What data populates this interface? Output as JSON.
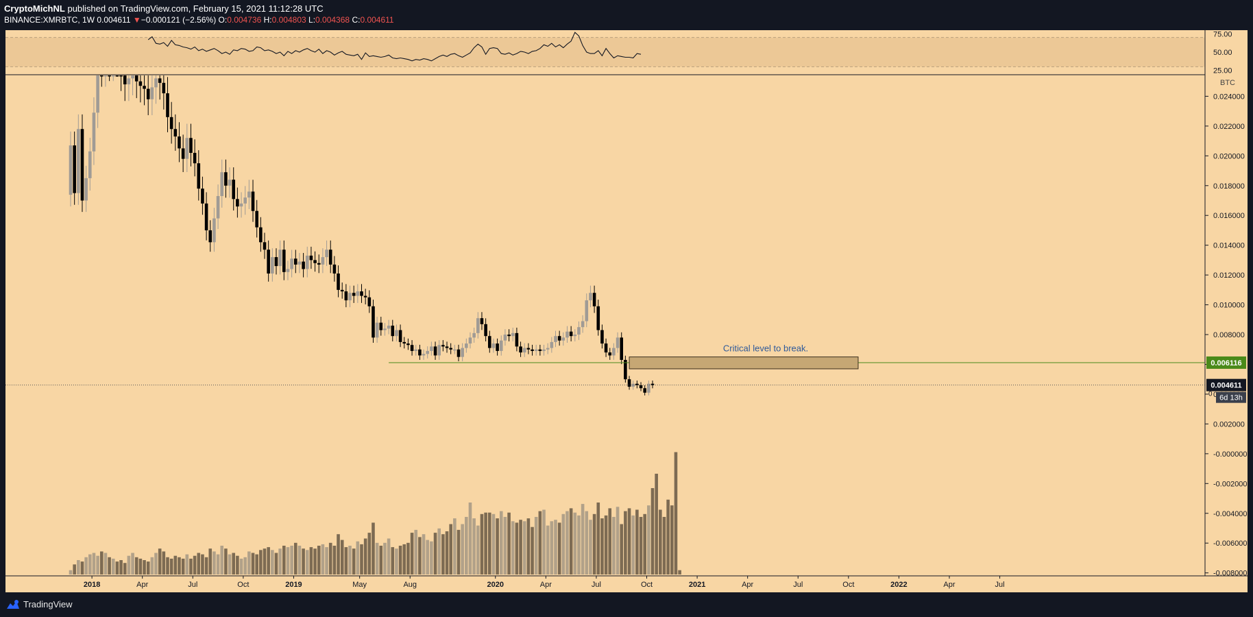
{
  "header": {
    "author": "CryptoMichNL",
    "published": "published on TradingView.com, February 15, 2021 11:12:28 UTC",
    "symbol": "BINANCE:XMRBTC, 1W",
    "last": "0.004611",
    "change_arrow": "▼",
    "change": "−0.000121 (−2.56%)",
    "o_label": "O:",
    "o": "0.004736",
    "h_label": "H:",
    "h": "0.004803",
    "l_label": "L:",
    "l": "0.004368",
    "c_label": "C:",
    "c": "0.004611"
  },
  "footer": {
    "brand": "TradingView",
    "logo_icon": "tradingview-logo-icon"
  },
  "colors": {
    "background": "#f8d6a4",
    "rsi_band": "#ecc896",
    "bull": "#a09b95",
    "bear": "#000000",
    "vol_up": "#b1a189",
    "vol_down": "#7d6b53",
    "support": "#4a8a1a",
    "box_fill": "#c6a774",
    "annotation": "#2f5a9a"
  },
  "chart_data": [
    {
      "type": "line",
      "name": "rsi",
      "y_ticks": [
        "75.00",
        "50.00",
        "25.00"
      ],
      "ylim": [
        20,
        80
      ],
      "band": [
        30,
        70
      ],
      "values": [
        67,
        71,
        62,
        61,
        63,
        58,
        66,
        60,
        59,
        57,
        56,
        54,
        57,
        52,
        54,
        51,
        53,
        55,
        52,
        48,
        50,
        47,
        53,
        52,
        55,
        54,
        51,
        52,
        57,
        56,
        52,
        53,
        51,
        48,
        50,
        45,
        51,
        48,
        52,
        50,
        53,
        55,
        52,
        50,
        54,
        48,
        52,
        50,
        46,
        49,
        51,
        47,
        46,
        45,
        47,
        40,
        49,
        44,
        45,
        44,
        43,
        44,
        46,
        42,
        41,
        42,
        41,
        40,
        38,
        40,
        39,
        41,
        40,
        38,
        41,
        44,
        46,
        44,
        47,
        48,
        45,
        43,
        46,
        49,
        56,
        61,
        57,
        47,
        55,
        56,
        55,
        48,
        47,
        49,
        46,
        48,
        51,
        50,
        48,
        51,
        52,
        55,
        60,
        58,
        62,
        57,
        60,
        56,
        61,
        65,
        77,
        72,
        59,
        50,
        48,
        48,
        52,
        45,
        55,
        48,
        42,
        45,
        44,
        43,
        43,
        42,
        48,
        47
      ]
    },
    {
      "type": "candlestick",
      "name": "XMRBTC",
      "ylabel": "BTC",
      "ylim": [
        -0.0082,
        0.0254
      ],
      "y_ticks": [
        "0.024000",
        "0.022000",
        "0.020000",
        "0.018000",
        "0.016000",
        "0.014000",
        "0.012000",
        "0.010000",
        "0.008000",
        "0.006000",
        "0.004000",
        "0.002000",
        "-0.000000",
        "-0.002000",
        "-0.004000",
        "-0.006000",
        "-0.008000"
      ],
      "x_ticks": [
        {
          "label": "2018",
          "bold": true,
          "week": 5.5
        },
        {
          "label": "Apr",
          "week": 18.5
        },
        {
          "label": "Jul",
          "week": 31.5
        },
        {
          "label": "Oct",
          "week": 44.5
        },
        {
          "label": "2019",
          "bold": true,
          "week": 57.5
        },
        {
          "label": "May",
          "week": 74.5
        },
        {
          "label": "Aug",
          "week": 87.5
        },
        {
          "label": "2020",
          "bold": true,
          "week": 109.5
        },
        {
          "label": "Apr",
          "week": 122.5
        },
        {
          "label": "Jul",
          "week": 135.5
        },
        {
          "label": "Oct",
          "week": 148.5
        },
        {
          "label": "2021",
          "bold": true,
          "week": 161.5
        },
        {
          "label": "Apr",
          "week": 174.5
        },
        {
          "label": "Jul",
          "week": 187.5
        },
        {
          "label": "Oct",
          "week": 200.5
        },
        {
          "label": "2022",
          "bold": true,
          "week": 213.5
        },
        {
          "label": "Apr",
          "week": 226.5
        },
        {
          "label": "Jul",
          "week": 239.5
        }
      ],
      "closes": [
        0.0207,
        0.0175,
        0.0218,
        0.017,
        0.0185,
        0.0203,
        0.0229,
        0.0262,
        0.0258,
        0.027,
        0.0262,
        0.0268,
        0.0265,
        0.0255,
        0.0248,
        0.0252,
        0.026,
        0.025,
        0.0247,
        0.0245,
        0.0238,
        0.0246,
        0.0252,
        0.0249,
        0.0242,
        0.0226,
        0.0218,
        0.0213,
        0.0205,
        0.0198,
        0.0212,
        0.0202,
        0.0195,
        0.0178,
        0.0168,
        0.015,
        0.0142,
        0.0158,
        0.0173,
        0.0189,
        0.018,
        0.0184,
        0.0171,
        0.0166,
        0.0168,
        0.0172,
        0.0176,
        0.0163,
        0.0152,
        0.0142,
        0.0137,
        0.0121,
        0.0132,
        0.0126,
        0.0137,
        0.0122,
        0.0124,
        0.0131,
        0.0127,
        0.0129,
        0.0124,
        0.0133,
        0.013,
        0.0128,
        0.0127,
        0.0132,
        0.0137,
        0.0127,
        0.0121,
        0.011,
        0.0109,
        0.0103,
        0.0108,
        0.0106,
        0.0109,
        0.0106,
        0.0105,
        0.0099,
        0.0078,
        0.0088,
        0.0083,
        0.0084,
        0.0086,
        0.0079,
        0.0083,
        0.0075,
        0.0074,
        0.0073,
        0.0069,
        0.007,
        0.0066,
        0.0067,
        0.0069,
        0.0072,
        0.0066,
        0.0073,
        0.0072,
        0.0071,
        0.007,
        0.007,
        0.0065,
        0.0071,
        0.0074,
        0.0078,
        0.0081,
        0.0091,
        0.0087,
        0.0079,
        0.0071,
        0.0074,
        0.0069,
        0.0076,
        0.008,
        0.0079,
        0.0081,
        0.0072,
        0.0068,
        0.0071,
        0.007,
        0.0069,
        0.007,
        0.0069,
        0.007,
        0.0071,
        0.0075,
        0.0079,
        0.0076,
        0.0078,
        0.0082,
        0.0079,
        0.008,
        0.0085,
        0.0089,
        0.0103,
        0.0108,
        0.0099,
        0.0083,
        0.0074,
        0.0068,
        0.0066,
        0.0071,
        0.0078,
        0.0063,
        0.005,
        0.0045,
        0.0047,
        0.0046,
        0.0044,
        0.0041,
        0.0047,
        0.0046
      ],
      "candles_note": "weekly OHLC derived from closes",
      "support_line": {
        "value": "0.006116",
        "from_week": 82
      },
      "zone": {
        "top": 0.0065,
        "bottom": 0.0057,
        "from_week": 144,
        "to_week": 203,
        "label": "Critical level to break."
      },
      "last_price": {
        "value": "0.004611",
        "countdown": "6d 13h",
        "extra": "0"
      },
      "volume": [
        6,
        14,
        20,
        18,
        24,
        28,
        30,
        26,
        32,
        30,
        24,
        22,
        18,
        20,
        16,
        26,
        30,
        24,
        22,
        20,
        18,
        24,
        30,
        36,
        32,
        24,
        22,
        26,
        24,
        22,
        28,
        22,
        26,
        30,
        28,
        24,
        36,
        32,
        28,
        40,
        36,
        28,
        30,
        26,
        22,
        24,
        32,
        30,
        28,
        34,
        36,
        38,
        34,
        30,
        36,
        40,
        38,
        40,
        44,
        40,
        36,
        34,
        38,
        36,
        40,
        42,
        38,
        44,
        40,
        56,
        48,
        38,
        40,
        36,
        46,
        42,
        50,
        58,
        72,
        44,
        40,
        44,
        50,
        38,
        36,
        40,
        42,
        44,
        58,
        62,
        52,
        56,
        48,
        46,
        58,
        64,
        56,
        60,
        70,
        78,
        62,
        70,
        80,
        100,
        78,
        68,
        84,
        86,
        86,
        84,
        78,
        88,
        80,
        86,
        74,
        72,
        76,
        74,
        78,
        66,
        80,
        88,
        90,
        68,
        74,
        76,
        72,
        84,
        88,
        92,
        86,
        82,
        98,
        88,
        76,
        84,
        100,
        78,
        82,
        92,
        80,
        94,
        70,
        88,
        92,
        82,
        90,
        80,
        84,
        96,
        120,
        140,
        90,
        80,
        104,
        96,
        170,
        6
      ]
    }
  ]
}
